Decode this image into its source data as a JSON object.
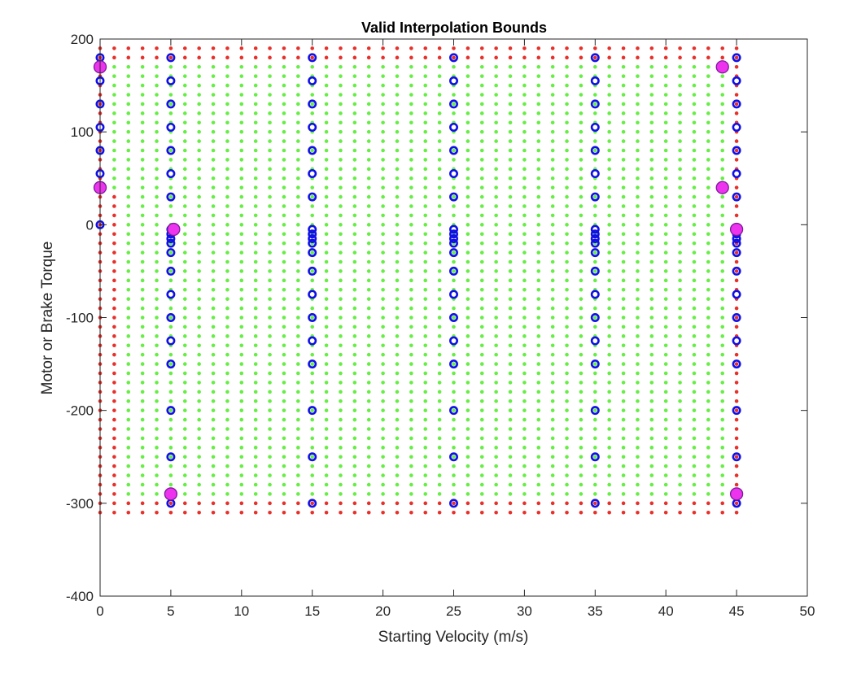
{
  "chart_data": {
    "type": "scatter",
    "title": "Valid Interpolation Bounds",
    "xlabel": "Starting Velocity (m/s)",
    "ylabel": "Motor or Brake Torque",
    "xlim": [
      0,
      50
    ],
    "ylim": [
      -400,
      200
    ],
    "xticks": [
      "0",
      "5",
      "10",
      "15",
      "20",
      "25",
      "30",
      "35",
      "40",
      "45",
      "50"
    ],
    "yticks": [
      "200",
      "100",
      "0",
      "-100",
      "-200",
      "-300",
      "-400"
    ],
    "grid": false,
    "colors": {
      "invalid": "#e8302a",
      "valid": "#66ee44",
      "breakpoints": "#1010e6",
      "boundary_fill": "#ee33ee",
      "boundary_edge": "#7a1a9a"
    },
    "grid_points": {
      "x_start": 0,
      "x_end": 45,
      "x_step": 1,
      "y_start": -310,
      "y_end": 190,
      "y_step": 10,
      "valid_region": {
        "x_min": 1,
        "x_max": 44,
        "y_min_at_x1": 40,
        "y_max_at_x1": 170,
        "y_min_at_x44": -290,
        "y_max_at_x44": 170,
        "y_min": -290,
        "y_max": 170
      }
    },
    "breakpoints": {
      "series": [
        {
          "x": 0,
          "y": [
            180,
            170,
            155,
            130,
            105,
            80,
            55,
            40,
            0
          ]
        },
        {
          "x": 5,
          "y": [
            180,
            155,
            130,
            105,
            80,
            55,
            30,
            -5,
            -10,
            -15,
            -20,
            -30,
            -50,
            -75,
            -100,
            -125,
            -150,
            -200,
            -250,
            -290,
            -300
          ]
        },
        {
          "x": 15,
          "y": [
            180,
            155,
            130,
            105,
            80,
            55,
            30,
            -5,
            -10,
            -15,
            -20,
            -30,
            -50,
            -75,
            -100,
            -125,
            -150,
            -200,
            -250,
            -300
          ]
        },
        {
          "x": 25,
          "y": [
            180,
            155,
            130,
            105,
            80,
            55,
            30,
            -5,
            -10,
            -15,
            -20,
            -30,
            -50,
            -75,
            -100,
            -125,
            -150,
            -200,
            -250,
            -300
          ]
        },
        {
          "x": 35,
          "y": [
            180,
            155,
            130,
            105,
            80,
            55,
            30,
            -5,
            -10,
            -15,
            -20,
            -30,
            -50,
            -75,
            -100,
            -125,
            -150,
            -200,
            -250,
            -300
          ]
        },
        {
          "x": 45,
          "y": [
            180,
            155,
            130,
            105,
            80,
            55,
            30,
            -5,
            -10,
            -15,
            -20,
            -30,
            -50,
            -75,
            -100,
            -125,
            -150,
            -200,
            -250,
            -290,
            -300
          ]
        }
      ]
    },
    "boundary_points": [
      {
        "x": 0,
        "y": 170
      },
      {
        "x": 0,
        "y": 40
      },
      {
        "x": 5.2,
        "y": -5
      },
      {
        "x": 5,
        "y": -290
      },
      {
        "x": 44,
        "y": 170
      },
      {
        "x": 44,
        "y": 40
      },
      {
        "x": 45,
        "y": -5
      },
      {
        "x": 45,
        "y": -290
      }
    ]
  }
}
